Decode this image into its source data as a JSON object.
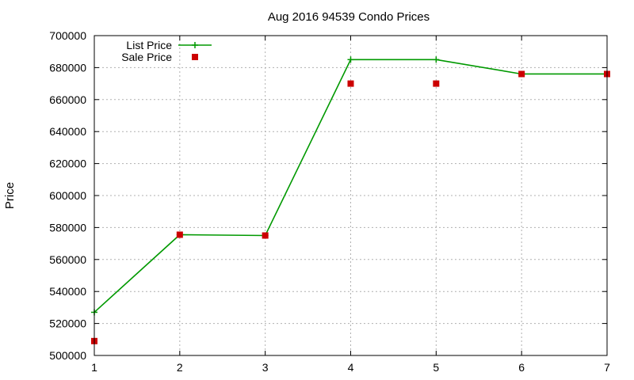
{
  "chart_data": {
    "type": "line",
    "title": "Aug 2016 94539 Condo Prices",
    "xlabel": "",
    "ylabel": "Price",
    "x": [
      1,
      2,
      3,
      4,
      5,
      6,
      7
    ],
    "xlim": [
      1,
      7
    ],
    "ylim": [
      500000,
      700000
    ],
    "xticks": [
      1,
      2,
      3,
      4,
      5,
      6,
      7
    ],
    "yticks": [
      500000,
      520000,
      540000,
      560000,
      580000,
      600000,
      620000,
      640000,
      660000,
      680000,
      700000
    ],
    "grid": true,
    "legend_position": "top-left",
    "series": [
      {
        "name": "List Price",
        "style": "line-with-plus-markers",
        "color": "#009900",
        "values": [
          527000,
          575500,
          575000,
          685000,
          685000,
          676000,
          676000
        ]
      },
      {
        "name": "Sale Price",
        "style": "square-markers",
        "color": "#cc0000",
        "values": [
          509000,
          575500,
          575000,
          670000,
          670000,
          676000,
          676000
        ]
      }
    ]
  }
}
